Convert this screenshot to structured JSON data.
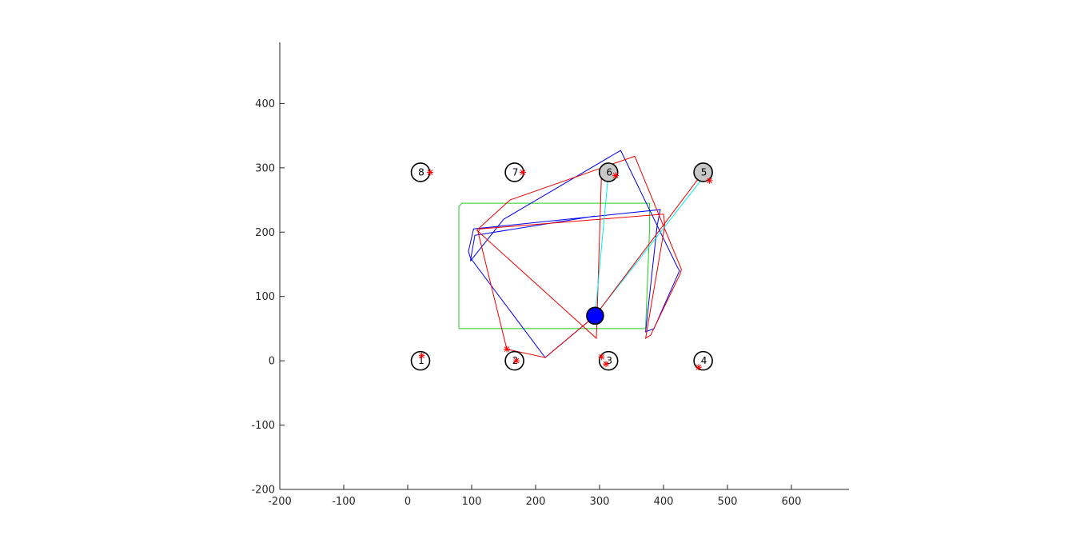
{
  "chart_data": {
    "type": "scatter",
    "title": "",
    "xlabel": "",
    "ylabel": "",
    "xlim": [
      -200,
      690
    ],
    "ylim": [
      -200,
      495
    ],
    "grid": false,
    "x_ticks": [
      -200,
      -100,
      0,
      100,
      200,
      300,
      400,
      500,
      600
    ],
    "y_ticks": [
      -200,
      -100,
      0,
      100,
      200,
      300,
      400
    ],
    "x_tick_labels": [
      "-200",
      "-100",
      "0",
      "100",
      "200",
      "300",
      "400",
      "500",
      "600"
    ],
    "y_tick_labels": [
      "-200",
      "-100",
      "0",
      "100",
      "200",
      "300",
      "400"
    ],
    "colors": {
      "axis": "#262626",
      "green_path": "#22cc22",
      "blue_path": "#0000ee",
      "red_path": "#ee0000",
      "cyan_ray": "#00eeee",
      "robot": "#0000ff",
      "observed_landmark": "#c8c8c8",
      "star": "#ff0000"
    },
    "landmarks": [
      {
        "label": "1",
        "x": 20,
        "y": 0,
        "observed": false
      },
      {
        "label": "2",
        "x": 167,
        "y": 0,
        "observed": false
      },
      {
        "label": "3",
        "x": 314,
        "y": 0,
        "observed": false
      },
      {
        "label": "4",
        "x": 462,
        "y": 0,
        "observed": false
      },
      {
        "label": "5",
        "x": 462,
        "y": 293,
        "observed": true
      },
      {
        "label": "6",
        "x": 314,
        "y": 293,
        "observed": true
      },
      {
        "label": "7",
        "x": 167,
        "y": 293,
        "observed": false
      },
      {
        "label": "8",
        "x": 20,
        "y": 293,
        "observed": false
      }
    ],
    "robot": {
      "x": 293,
      "y": 70
    },
    "series": [
      {
        "color": "green",
        "x": [
          80,
          80,
          85,
          378,
          378,
          372,
          80,
          180
        ],
        "y": [
          50,
          240,
          245,
          245,
          200,
          50,
          50,
          50
        ]
      },
      {
        "color": "blue",
        "x": [
          293,
          215,
          98,
          95,
          103,
          395,
          390,
          372,
          385,
          425,
          422,
          333,
          150,
          98,
          105,
          293
        ],
        "y": [
          70,
          5,
          160,
          170,
          205,
          235,
          210,
          45,
          50,
          140,
          145,
          327,
          220,
          155,
          195,
          225
        ]
      },
      {
        "color": "red",
        "x": [
          293,
          215,
          155,
          110,
          113,
          400,
          402,
          372,
          380,
          426,
          428,
          355,
          160,
          108,
          295,
          303
        ],
        "y": [
          70,
          5,
          18,
          200,
          205,
          228,
          210,
          35,
          40,
          135,
          142,
          318,
          250,
          203,
          35,
          290
        ]
      }
    ],
    "rays": [
      {
        "color": "cyan",
        "x": [
          293,
          314
        ],
        "y": [
          70,
          293
        ]
      },
      {
        "color": "cyan",
        "x": [
          293,
          466
        ],
        "y": [
          70,
          290
        ]
      },
      {
        "color": "red",
        "x": [
          293,
          462
        ],
        "y": [
          70,
          293
        ]
      }
    ],
    "stars": [
      {
        "x": 22,
        "y": 8
      },
      {
        "x": 35,
        "y": 293
      },
      {
        "x": 180,
        "y": 293
      },
      {
        "x": 170,
        "y": 0
      },
      {
        "x": 155,
        "y": 18
      },
      {
        "x": 303,
        "y": 6
      },
      {
        "x": 310,
        "y": -5
      },
      {
        "x": 325,
        "y": 288
      },
      {
        "x": 472,
        "y": 280
      },
      {
        "x": 455,
        "y": -10
      }
    ]
  }
}
